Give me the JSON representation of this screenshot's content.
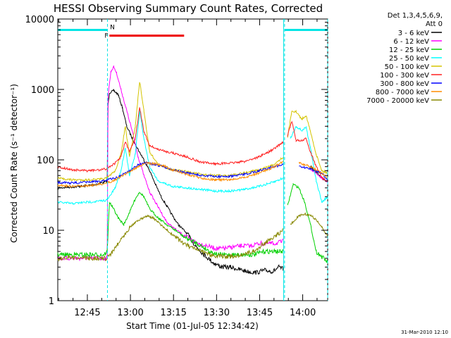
{
  "chart_data": {
    "type": "line",
    "title": "HESSI Observing Summary Count Rates, Corrected",
    "xlabel": "Start Time (01-Jul-05 12:34:42)",
    "ylabel": "Corrected Count Rate (s⁻¹ detector⁻¹)",
    "yscale": "log",
    "ylim": [
      1,
      10000
    ],
    "xlim_minutes_after_1234": [
      0,
      94
    ],
    "y_tick_labels": [
      "1",
      "10",
      "100",
      "1000",
      "10000"
    ],
    "x_tick_labels": [
      "12:45",
      "13:00",
      "13:15",
      "13:30",
      "13:45",
      "14:00"
    ],
    "legend_header": [
      "Det 1,3,4,5,6,9,",
      "Att 0"
    ],
    "footer": "31-Mar-2010 12:10",
    "flags": [
      {
        "label": "N",
        "color": "#00e5e5",
        "segments": [
          [
            0,
            17.3
          ],
          [
            79,
            94
          ]
        ],
        "y": 7000
      },
      {
        "label": "F",
        "color": "#ee0000",
        "segments": [
          [
            18,
            44
          ]
        ],
        "y": 5800
      }
    ],
    "vlines_minutes": [
      17.3,
      79,
      94
    ],
    "series": [
      {
        "name": "3 - 6 keV",
        "color": "#000000",
        "points": [
          [
            0,
            40
          ],
          [
            8,
            42
          ],
          [
            12,
            44
          ],
          [
            16,
            48
          ],
          [
            17.2,
            50
          ],
          [
            17.5,
            600
          ],
          [
            18,
            900
          ],
          [
            19.5,
            960
          ],
          [
            21,
            850
          ],
          [
            22.5,
            550
          ],
          [
            24,
            300
          ],
          [
            26,
            200
          ],
          [
            28,
            140
          ],
          [
            30,
            100
          ],
          [
            32,
            70
          ],
          [
            34,
            45
          ],
          [
            36,
            30
          ],
          [
            38,
            22
          ],
          [
            40,
            16
          ],
          [
            42,
            12
          ],
          [
            45,
            9
          ],
          [
            48,
            6
          ],
          [
            51,
            4.5
          ],
          [
            54,
            3.5
          ],
          [
            57,
            3
          ],
          [
            60,
            3
          ],
          [
            63,
            2.8
          ],
          [
            66,
            2.6
          ],
          [
            69,
            2.5
          ],
          [
            72,
            2.7
          ],
          [
            75,
            2.6
          ],
          [
            77,
            3
          ],
          [
            78.5,
            2.8
          ],
          [
            79,
            null
          ],
          [
            88,
            80
          ],
          [
            92,
            55
          ],
          [
            94,
            50
          ]
        ],
        "drops": [
          [
            68,
            2
          ],
          [
            72,
            2
          ],
          [
            64,
            2.2
          ]
        ]
      },
      {
        "name": "6 - 12 keV",
        "color": "#ff00ff",
        "points": [
          [
            0,
            4
          ],
          [
            10,
            4
          ],
          [
            15,
            4
          ],
          [
            17.2,
            4
          ],
          [
            17.5,
            800
          ],
          [
            18.5,
            1800
          ],
          [
            19.5,
            2100
          ],
          [
            20.5,
            1700
          ],
          [
            22,
            1000
          ],
          [
            24,
            500
          ],
          [
            26,
            250
          ],
          [
            28,
            110
          ],
          [
            30,
            60
          ],
          [
            32,
            35
          ],
          [
            34,
            25
          ],
          [
            36,
            18
          ],
          [
            38,
            13
          ],
          [
            40,
            11
          ],
          [
            43,
            9
          ],
          [
            46,
            7.5
          ],
          [
            49,
            6.5
          ],
          [
            52,
            6
          ],
          [
            55,
            5.5
          ],
          [
            58,
            5.5
          ],
          [
            61,
            5.8
          ],
          [
            64,
            6
          ],
          [
            67,
            6
          ],
          [
            70,
            6.5
          ],
          [
            73,
            6.5
          ],
          [
            76,
            6.5
          ],
          [
            78.5,
            7
          ],
          [
            79,
            null
          ],
          [
            88,
            75
          ],
          [
            92,
            55
          ],
          [
            94,
            48
          ]
        ]
      },
      {
        "name": "12 - 25 keV",
        "color": "#00d000",
        "points": [
          [
            0,
            4.5
          ],
          [
            6,
            4.5
          ],
          [
            12,
            4.5
          ],
          [
            16,
            4.5
          ],
          [
            17.2,
            5
          ],
          [
            18,
            25
          ],
          [
            19.5,
            20
          ],
          [
            21,
            15
          ],
          [
            23,
            12
          ],
          [
            25,
            18
          ],
          [
            27,
            28
          ],
          [
            28.5,
            35
          ],
          [
            30,
            30
          ],
          [
            32,
            20
          ],
          [
            35,
            15
          ],
          [
            38,
            12
          ],
          [
            41,
            10
          ],
          [
            44,
            8
          ],
          [
            47,
            7
          ],
          [
            50,
            6
          ],
          [
            53,
            5
          ],
          [
            56,
            4.5
          ],
          [
            60,
            4.5
          ],
          [
            64,
            4.5
          ],
          [
            68,
            4.5
          ],
          [
            72,
            5
          ],
          [
            76,
            5
          ],
          [
            78.5,
            5
          ],
          [
            79,
            null
          ],
          [
            80,
            22
          ],
          [
            82,
            45
          ],
          [
            84,
            40
          ],
          [
            86,
            25
          ],
          [
            88,
            12
          ],
          [
            90,
            5
          ],
          [
            94,
            3.5
          ]
        ]
      },
      {
        "name": "25 - 50 keV",
        "color": "#00ffff",
        "points": [
          [
            0,
            25
          ],
          [
            5,
            24
          ],
          [
            10,
            25
          ],
          [
            15,
            26
          ],
          [
            17.2,
            27
          ],
          [
            18,
            30
          ],
          [
            20,
            40
          ],
          [
            22,
            70
          ],
          [
            23.5,
            150
          ],
          [
            25,
            60
          ],
          [
            27,
            120
          ],
          [
            28.5,
            500
          ],
          [
            30,
            200
          ],
          [
            32,
            80
          ],
          [
            35,
            50
          ],
          [
            40,
            42
          ],
          [
            45,
            40
          ],
          [
            50,
            38
          ],
          [
            55,
            36
          ],
          [
            60,
            36
          ],
          [
            65,
            38
          ],
          [
            70,
            42
          ],
          [
            75,
            48
          ],
          [
            78.5,
            55
          ],
          [
            79,
            null
          ],
          [
            81,
            200
          ],
          [
            83,
            300
          ],
          [
            85,
            260
          ],
          [
            86.5,
            290
          ],
          [
            88,
            150
          ],
          [
            90,
            50
          ],
          [
            92,
            25
          ],
          [
            94,
            30
          ]
        ]
      },
      {
        "name": "50 - 100 keV",
        "color": "#d4c400",
        "points": [
          [
            0,
            55
          ],
          [
            5,
            52
          ],
          [
            10,
            52
          ],
          [
            15,
            53
          ],
          [
            17.2,
            55
          ],
          [
            18,
            60
          ],
          [
            20,
            70
          ],
          [
            22,
            120
          ],
          [
            23.5,
            300
          ],
          [
            25,
            110
          ],
          [
            27,
            300
          ],
          [
            28.5,
            1300
          ],
          [
            30,
            500
          ],
          [
            32,
            130
          ],
          [
            35,
            85
          ],
          [
            40,
            72
          ],
          [
            45,
            68
          ],
          [
            50,
            62
          ],
          [
            55,
            60
          ],
          [
            60,
            60
          ],
          [
            65,
            65
          ],
          [
            70,
            72
          ],
          [
            75,
            85
          ],
          [
            78.5,
            110
          ],
          [
            79,
            null
          ],
          [
            80,
            200
          ],
          [
            81.5,
            500
          ],
          [
            83,
            480
          ],
          [
            85,
            380
          ],
          [
            86.5,
            430
          ],
          [
            88,
            250
          ],
          [
            90,
            120
          ],
          [
            92,
            70
          ],
          [
            94,
            65
          ]
        ]
      },
      {
        "name": "100 - 300 keV",
        "color": "#ff2020",
        "points": [
          [
            0,
            80
          ],
          [
            5,
            72
          ],
          [
            10,
            70
          ],
          [
            15,
            72
          ],
          [
            17.2,
            75
          ],
          [
            18,
            80
          ],
          [
            20,
            90
          ],
          [
            22,
            110
          ],
          [
            23.5,
            180
          ],
          [
            25,
            130
          ],
          [
            27,
            200
          ],
          [
            28.5,
            550
          ],
          [
            30,
            250
          ],
          [
            32,
            160
          ],
          [
            35,
            140
          ],
          [
            40,
            125
          ],
          [
            45,
            110
          ],
          [
            50,
            92
          ],
          [
            55,
            88
          ],
          [
            60,
            90
          ],
          [
            65,
            95
          ],
          [
            70,
            110
          ],
          [
            75,
            140
          ],
          [
            78.5,
            180
          ],
          [
            79,
            null
          ],
          [
            80,
            220
          ],
          [
            81.5,
            350
          ],
          [
            83,
            190
          ],
          [
            85,
            185
          ],
          [
            86.5,
            200
          ],
          [
            88,
            130
          ],
          [
            90,
            80
          ],
          [
            92,
            55
          ],
          [
            94,
            50
          ]
        ]
      },
      {
        "name": "300 - 800 keV",
        "color": "#0000ff",
        "points": [
          [
            0,
            48
          ],
          [
            5,
            47
          ],
          [
            10,
            48
          ],
          [
            15,
            50
          ],
          [
            17.2,
            52
          ],
          [
            20,
            55
          ],
          [
            22,
            60
          ],
          [
            25,
            70
          ],
          [
            28,
            85
          ],
          [
            31,
            90
          ],
          [
            34,
            85
          ],
          [
            37,
            80
          ],
          [
            40,
            72
          ],
          [
            45,
            65
          ],
          [
            50,
            60
          ],
          [
            55,
            58
          ],
          [
            60,
            58
          ],
          [
            65,
            62
          ],
          [
            70,
            70
          ],
          [
            75,
            80
          ],
          [
            78.5,
            85
          ],
          [
            79,
            null
          ],
          [
            84,
            80
          ],
          [
            88,
            75
          ],
          [
            92,
            65
          ],
          [
            94,
            50
          ]
        ]
      },
      {
        "name": "800 - 7000 keV",
        "color": "#ff8c00",
        "points": [
          [
            0,
            44
          ],
          [
            5,
            42
          ],
          [
            10,
            43
          ],
          [
            15,
            45
          ],
          [
            17.2,
            47
          ],
          [
            20,
            52
          ],
          [
            22,
            58
          ],
          [
            25,
            68
          ],
          [
            28,
            80
          ],
          [
            31,
            90
          ],
          [
            34,
            88
          ],
          [
            37,
            82
          ],
          [
            40,
            72
          ],
          [
            45,
            62
          ],
          [
            50,
            55
          ],
          [
            55,
            52
          ],
          [
            60,
            52
          ],
          [
            65,
            56
          ],
          [
            70,
            65
          ],
          [
            75,
            78
          ],
          [
            78.5,
            95
          ],
          [
            79,
            null
          ],
          [
            84,
            90
          ],
          [
            88,
            80
          ],
          [
            92,
            65
          ],
          [
            94,
            55
          ]
        ]
      },
      {
        "name": "7000 - 20000 keV",
        "color": "#888800",
        "points": [
          [
            0,
            4
          ],
          [
            5,
            4
          ],
          [
            10,
            4
          ],
          [
            15,
            4
          ],
          [
            17.2,
            4
          ],
          [
            19,
            5
          ],
          [
            21,
            6.5
          ],
          [
            23,
            8.5
          ],
          [
            25,
            11
          ],
          [
            27,
            13
          ],
          [
            29,
            14.5
          ],
          [
            31,
            16
          ],
          [
            33,
            15
          ],
          [
            35,
            13
          ],
          [
            38,
            10
          ],
          [
            41,
            8
          ],
          [
            44,
            6.5
          ],
          [
            47,
            5.5
          ],
          [
            50,
            5
          ],
          [
            53,
            4.5
          ],
          [
            56,
            4.3
          ],
          [
            60,
            4.2
          ],
          [
            64,
            4.5
          ],
          [
            68,
            5
          ],
          [
            72,
            6.5
          ],
          [
            76,
            8.5
          ],
          [
            78.5,
            10
          ],
          [
            79,
            null
          ],
          [
            81,
            12
          ],
          [
            84,
            16
          ],
          [
            86,
            17
          ],
          [
            88,
            16.5
          ],
          [
            90,
            14
          ],
          [
            92,
            11
          ],
          [
            94,
            8
          ]
        ]
      }
    ]
  }
}
